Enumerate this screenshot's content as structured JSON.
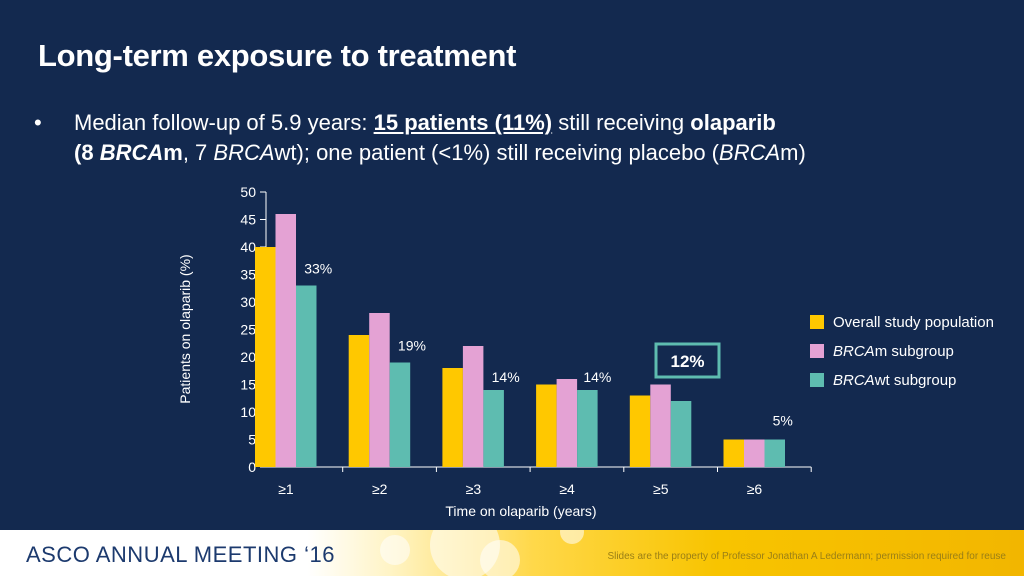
{
  "slide": {
    "title": "Long-term exposure to treatment",
    "bullet": {
      "marker": "•",
      "p1": "Median follow-up of 5.9 years: ",
      "p2": "15 patients (11%)",
      "p3": " still receiving ",
      "p4": "olaparib",
      "p5": "(",
      "p6": "8 ",
      "p7": "BRCA",
      "p8": "m",
      "p9": ", 7 ",
      "p10": "BRCA",
      "p11": "wt); one patient (<1%) still receiving placebo (",
      "p12": "BRCA",
      "p13": "m)"
    }
  },
  "chart_data": {
    "type": "bar",
    "categories": [
      "≥1",
      "≥2",
      "≥3",
      "≥4",
      "≥5",
      "≥6"
    ],
    "series": [
      {
        "name": "Overall study population",
        "values": [
          40,
          24,
          18,
          15,
          13,
          5
        ],
        "color": "#ffc800"
      },
      {
        "name": "BRCAm subgroup",
        "legend_italic": "BRCA",
        "legend_rest": "m subgroup",
        "values": [
          46,
          28,
          22,
          16,
          15,
          5
        ],
        "color": "#e4a2d4"
      },
      {
        "name": "BRCAwt subgroup",
        "legend_italic": "BRCA",
        "legend_rest": "wt subgroup",
        "values": [
          33,
          19,
          14,
          14,
          12,
          5
        ],
        "color": "#5ebcb0"
      }
    ],
    "data_labels": [
      "33%",
      "19%",
      "14%",
      "14%",
      "12%",
      "5%"
    ],
    "highlight_index": 4,
    "xlabel": "Time on olaparib (years)",
    "ylabel": "Patients on olaparib (%)",
    "ylim": [
      0,
      50
    ],
    "yticks": [
      0,
      5,
      10,
      15,
      20,
      25,
      30,
      35,
      40,
      45,
      50
    ],
    "legend_position": "right",
    "highlight_box_color": "#5ebcb0"
  },
  "footer": {
    "meeting": "ASCO ANNUAL MEETING ‘16",
    "note": "Slides are the property of Professor Jonathan A Ledermann; permission required for reuse"
  }
}
